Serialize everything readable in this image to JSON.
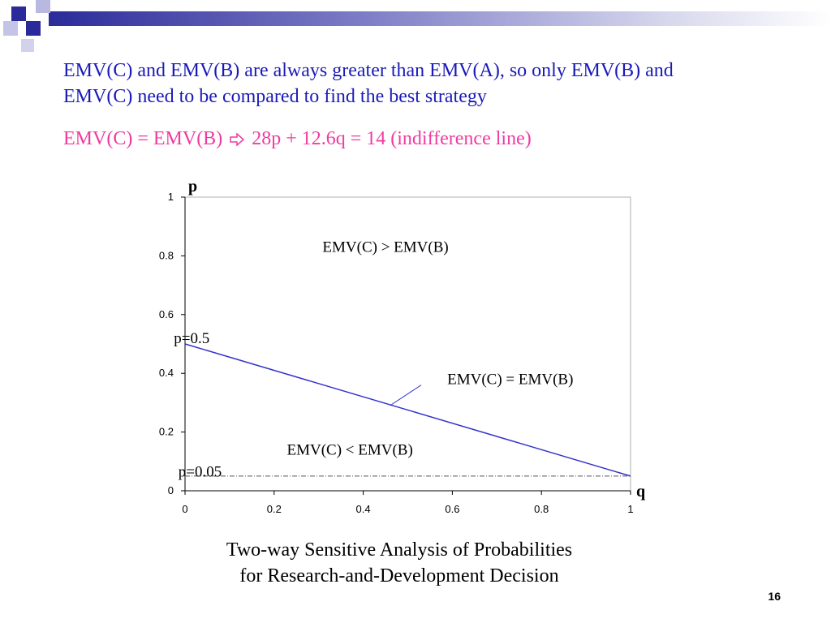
{
  "slide": {
    "line1": "EMV(C) and EMV(B) are always greater than EMV(A), so only EMV(B) and",
    "line2": "EMV(C) need to be compared to find the best strategy",
    "formula_left": "EMV(C) = EMV(B)",
    "formula_right": "28p + 12.6q = 14 (indifference line)",
    "caption_line1": "Two-way Sensitive Analysis of Probabilities",
    "caption_line2": "for Research-and-Development Decision",
    "page_number": "16",
    "colors": {
      "body_text": "#1a1ab8",
      "formula_text": "#f03aa0",
      "series_line": "#3333cc"
    }
  },
  "chart_data": {
    "type": "line",
    "xlabel": "q",
    "ylabel": "p",
    "xlim": [
      0,
      1
    ],
    "ylim": [
      0,
      1
    ],
    "x_ticks": [
      "0",
      "0.2",
      "0.4",
      "0.6",
      "0.8",
      "1"
    ],
    "y_ticks": [
      "0",
      "0.2",
      "0.4",
      "0.6",
      "0.8",
      "1"
    ],
    "x_tick_values": [
      0,
      0.2,
      0.4,
      0.6,
      0.8,
      1
    ],
    "y_tick_values": [
      0,
      0.2,
      0.4,
      0.6,
      0.8,
      1
    ],
    "grid": false,
    "series": [
      {
        "x": [
          0,
          1
        ],
        "y": [
          0.5,
          0.05
        ]
      }
    ],
    "reference_line": {
      "y": 0.05,
      "style": "dash-dot"
    },
    "annotations": [
      {
        "text": "EMV(C) > EMV(B)",
        "x": 0.45,
        "y": 0.83
      },
      {
        "text": "EMV(C) = EMV(B)",
        "x": 0.73,
        "y": 0.38,
        "pointer_to": {
          "x": 0.46,
          "y": 0.29
        },
        "pointer_from": {
          "x": 0.53,
          "y": 0.36
        }
      },
      {
        "text": "EMV(C) < EMV(B)",
        "x": 0.37,
        "y": 0.14
      },
      {
        "text": "p=0.5",
        "x": -0.025,
        "y": 0.52
      },
      {
        "text": "p=0.05",
        "x": -0.015,
        "y": 0.065
      }
    ]
  }
}
